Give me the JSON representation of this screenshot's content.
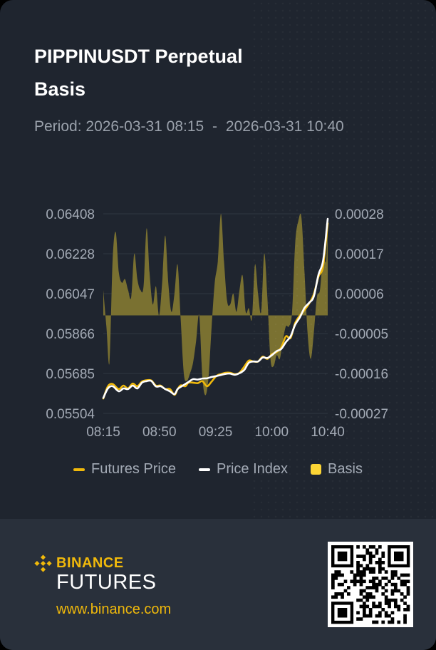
{
  "header": {
    "title_line1": "PIPPINUSDT Perpetual",
    "title_line2": "Basis",
    "period_label": "Period:",
    "period_start": "2026-03-31 08:15",
    "period_separator": "-",
    "period_end": "2026-03-31 10:40"
  },
  "colors": {
    "futures": "#f0b90b",
    "index": "#ffffff",
    "basis_fill": "#7f7532",
    "background": "#1f252f",
    "footer": "#29303b",
    "axis_text": "#a3aab5",
    "grid": "#2f3641"
  },
  "legend": {
    "futures_label": "Futures Price",
    "index_label": "Price Index",
    "basis_label": "Basis"
  },
  "chart_data": {
    "type": "line",
    "x_ticks": [
      "08:15",
      "08:50",
      "09:25",
      "10:00",
      "10:40"
    ],
    "y_left_ticks": [
      "0.06408",
      "0.06228",
      "0.06047",
      "0.05866",
      "0.05685",
      "0.05504"
    ],
    "y_right_ticks": [
      "0.00028",
      "0.00017",
      "0.00006",
      "-0.00005",
      "-0.00016",
      "-0.00027"
    ],
    "y_left_range": [
      0.05504,
      0.06408
    ],
    "y_right_range": [
      -0.00027,
      0.00028
    ],
    "x_range_minutes": [
      0,
      145
    ],
    "grid": true,
    "legend_position": "bottom",
    "series": [
      {
        "name": "Futures Price",
        "axis": "left",
        "x": [
          0,
          3,
          6,
          10,
          13,
          16,
          19,
          22,
          25,
          28,
          31,
          34,
          37,
          40,
          43,
          46,
          48,
          50,
          53,
          55,
          58,
          61,
          64,
          67,
          70,
          73,
          76,
          79,
          82,
          85,
          88,
          91,
          94,
          97,
          100,
          103,
          106,
          109,
          112,
          115,
          118,
          121,
          124,
          127,
          130,
          133,
          136,
          139,
          142,
          145
        ],
        "values": [
          0.05571,
          0.05627,
          0.05637,
          0.05614,
          0.0563,
          0.05617,
          0.05639,
          0.05627,
          0.05648,
          0.05654,
          0.05653,
          0.0563,
          0.0563,
          0.05614,
          0.05614,
          0.05588,
          0.05613,
          0.05631,
          0.05627,
          0.05643,
          0.05643,
          0.05641,
          0.0565,
          0.05627,
          0.05648,
          0.05673,
          0.05682,
          0.05688,
          0.05688,
          0.05682,
          0.05688,
          0.05715,
          0.05743,
          0.05739,
          0.05739,
          0.05761,
          0.05751,
          0.05773,
          0.05782,
          0.05803,
          0.05853,
          0.05846,
          0.05914,
          0.05947,
          0.05972,
          0.06002,
          0.06043,
          0.06123,
          0.06171,
          0.06365
        ]
      },
      {
        "name": "Price Index",
        "axis": "left",
        "x": [
          0,
          3,
          6,
          10,
          13,
          16,
          19,
          22,
          25,
          28,
          31,
          34,
          37,
          40,
          43,
          46,
          48,
          50,
          53,
          55,
          58,
          61,
          64,
          67,
          70,
          73,
          76,
          79,
          82,
          85,
          88,
          91,
          94,
          97,
          100,
          103,
          106,
          109,
          112,
          115,
          118,
          121,
          124,
          127,
          130,
          133,
          136,
          139,
          142,
          145
        ],
        "values": [
          0.05574,
          0.05617,
          0.05627,
          0.05604,
          0.05617,
          0.05614,
          0.0563,
          0.05617,
          0.05643,
          0.0565,
          0.05651,
          0.05626,
          0.05627,
          0.05614,
          0.05604,
          0.05591,
          0.05614,
          0.05624,
          0.05637,
          0.05646,
          0.05659,
          0.05657,
          0.05662,
          0.05663,
          0.05669,
          0.05673,
          0.05678,
          0.05683,
          0.05684,
          0.05679,
          0.05686,
          0.057,
          0.05733,
          0.05739,
          0.05739,
          0.05757,
          0.05755,
          0.05768,
          0.05786,
          0.05796,
          0.05827,
          0.05853,
          0.05906,
          0.05939,
          0.05982,
          0.06005,
          0.06033,
          0.06132,
          0.06196,
          0.06385
        ]
      },
      {
        "name": "Basis",
        "axis": "right",
        "type": "area",
        "x": [
          0,
          2,
          4,
          6,
          8,
          10,
          12,
          14,
          16,
          18,
          20,
          22,
          24,
          26,
          28,
          30,
          32,
          34,
          36,
          38,
          40,
          42,
          44,
          46,
          48,
          50,
          52,
          54,
          56,
          58,
          60,
          62,
          64,
          66,
          68,
          70,
          72,
          74,
          76,
          78,
          80,
          82,
          84,
          86,
          88,
          90,
          92,
          94,
          96,
          98,
          100,
          102,
          104,
          106,
          108,
          110,
          112,
          114,
          116,
          118,
          120,
          122,
          124,
          126,
          128,
          130,
          132,
          134,
          136,
          138,
          140,
          142,
          144,
          145
        ],
        "values": [
          7e-05,
          -3e-05,
          -0.00013,
          0.00015,
          0.00023,
          0.00012,
          9e-05,
          0.0001,
          7e-05,
          5e-05,
          0.00017,
          0.0001,
          7e-05,
          8e-05,
          0.00024,
          0.00011,
          3e-05,
          8e-05,
          0.0,
          9e-05,
          0.00022,
          9e-05,
          1e-05,
          6e-05,
          0.00014,
          -1e-05,
          -0.00016,
          -0.00018,
          -0.00016,
          -0.00013,
          -7e-05,
          0.0,
          -0.00017,
          -0.00022,
          -0.00017,
          -3e-05,
          9e-05,
          0.00015,
          0.00028,
          0.00015,
          4e-05,
          3e-05,
          6e-05,
          1e-05,
          7e-05,
          0.00011,
          1e-05,
          2e-05,
          -1e-05,
          0.00014,
          6e-05,
          1e-05,
          0.00017,
          5e-05,
          -0.00012,
          -0.00014,
          -0.00011,
          -0.00012,
          -7e-05,
          -3e-05,
          -3e-05,
          1e-05,
          0.0002,
          0.00026,
          0.00027,
          0.00012,
          -5e-05,
          -0.00012,
          -5e-05,
          5e-05,
          7e-05,
          0.00016,
          0.00015,
          0.00026
        ]
      }
    ]
  },
  "footer": {
    "brand_name": "BINANCE",
    "brand_sub": "FUTURES",
    "url": "www.binance.com"
  }
}
